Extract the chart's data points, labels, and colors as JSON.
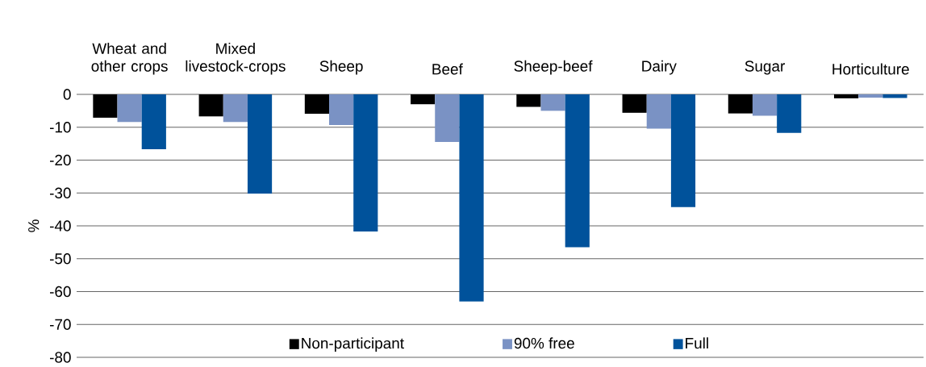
{
  "chart_data": {
    "type": "bar",
    "ylabel": "%",
    "categories": [
      "Wheat and other crops",
      "Mixed livestock-crops",
      "Sheep",
      "Beef",
      "Sheep-beef",
      "Dairy",
      "Sugar",
      "Horticulture"
    ],
    "series": [
      {
        "name": "Non-participant",
        "color": "#000000",
        "values": [
          -7.1,
          -6.7,
          -5.9,
          -3.0,
          -3.8,
          -5.6,
          -5.8,
          -1.2
        ]
      },
      {
        "name": "90% free",
        "color": "#7a92c4",
        "values": [
          -8.4,
          -8.4,
          -9.3,
          -14.5,
          -5.0,
          -10.4,
          -6.5,
          -1.0
        ]
      },
      {
        "name": "Full",
        "color": "#00529b",
        "values": [
          -16.7,
          -30.2,
          -41.7,
          -63.0,
          -46.5,
          -34.3,
          -11.7,
          -1.1
        ]
      }
    ],
    "ylim": [
      -80,
      0
    ],
    "yticks": [
      0,
      -10,
      -20,
      -30,
      -40,
      -50,
      -60,
      -70,
      -80
    ],
    "grid": "y",
    "legend": "bottom"
  }
}
